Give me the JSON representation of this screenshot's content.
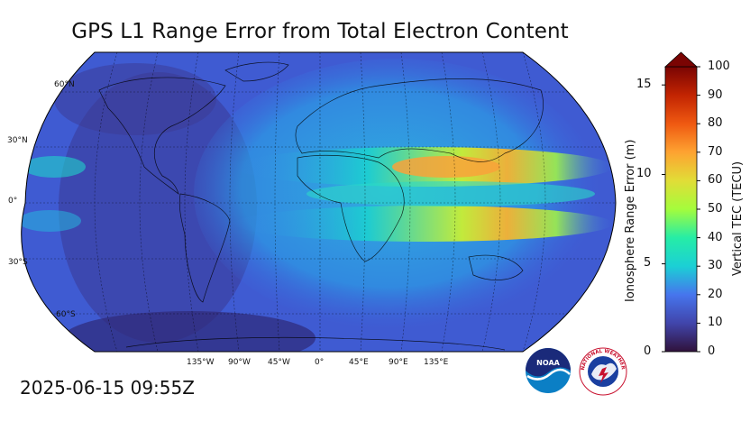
{
  "title": "GPS L1 Range Error from Total Electron Content",
  "timestamp": "2025-06-15 09:55Z",
  "map": {
    "projection": "Robinson",
    "lat_labels": [
      "60°N",
      "30°N",
      "0°",
      "30°S",
      "60°S"
    ],
    "lon_labels": [
      "135°W",
      "90°W",
      "45°W",
      "0°",
      "45°E",
      "90°E",
      "135°E"
    ]
  },
  "colorbar": {
    "left_label": "Ionosphere Range Error (m)",
    "right_label": "Vertical TEC (TECU)",
    "left_ticks": [
      "0",
      "5",
      "10",
      "15"
    ],
    "right_ticks": [
      "0",
      "10",
      "20",
      "30",
      "40",
      "50",
      "60",
      "70",
      "80",
      "90",
      "100"
    ],
    "tec_range": [
      0,
      100
    ],
    "extend": "max"
  },
  "logos": {
    "noaa_text": "NOAA",
    "nws_text": "NATIONAL WEATHER SERVICE"
  },
  "colors": {
    "low": "#30123b",
    "blue": "#3a5fd6",
    "cyan": "#1ae4b6",
    "green": "#a4fc3c",
    "yellow": "#e7d739",
    "orange": "#fb8022",
    "red": "#d23105",
    "dark_red": "#7a0403"
  }
}
